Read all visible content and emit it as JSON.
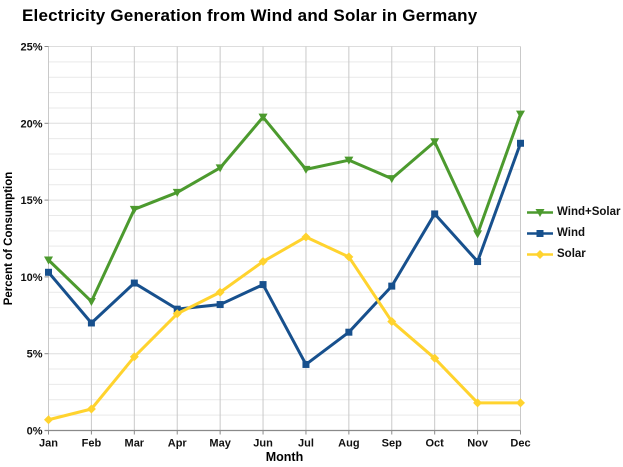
{
  "page": {
    "background": "#ffffff"
  },
  "chart_data": {
    "type": "line",
    "title": "Electricity Generation from Wind and Solar in Germany",
    "xlabel": "Month",
    "ylabel": "Percent of Consumption",
    "categories": [
      "Jan",
      "Feb",
      "Mar",
      "Apr",
      "May",
      "Jun",
      "Jul",
      "Aug",
      "Sep",
      "Oct",
      "Nov",
      "Dec"
    ],
    "ylim": [
      0,
      25
    ],
    "ytick_values": [
      0,
      5,
      10,
      15,
      20,
      25
    ],
    "ytick_labels": [
      "0%",
      "5%",
      "10%",
      "15%",
      "20%",
      "25%"
    ],
    "minor_grid_step_percent": 1,
    "grid": "horizontal minor lines every 1%, vertical line at every month, no darker frame except bottom axis",
    "legend_position": "right-middle",
    "series": [
      {
        "name": "Wind+Solar",
        "color": "#4c9a2e",
        "marker": "triangle-down",
        "values": [
          11.1,
          8.4,
          14.4,
          15.5,
          17.1,
          20.4,
          17.0,
          17.6,
          16.4,
          18.8,
          12.8,
          20.6
        ]
      },
      {
        "name": "Wind",
        "color": "#17508d",
        "marker": "square",
        "values": [
          10.3,
          7.0,
          9.6,
          7.9,
          8.2,
          9.5,
          4.3,
          6.4,
          9.4,
          14.1,
          11.0,
          18.7
        ]
      },
      {
        "name": "Solar",
        "color": "#ffd32e",
        "marker": "diamond",
        "values": [
          0.7,
          1.4,
          4.8,
          7.6,
          9.0,
          11.0,
          12.6,
          11.3,
          7.1,
          4.7,
          1.8,
          1.8
        ]
      }
    ]
  },
  "colors": {
    "grid_minor": "#e9e9e9",
    "grid_major": "#dddddd",
    "grid_vertical": "#c9c9c9",
    "axis": "#8a8a8a",
    "tick_text": "#111111",
    "axis_title_text": "#000000"
  }
}
